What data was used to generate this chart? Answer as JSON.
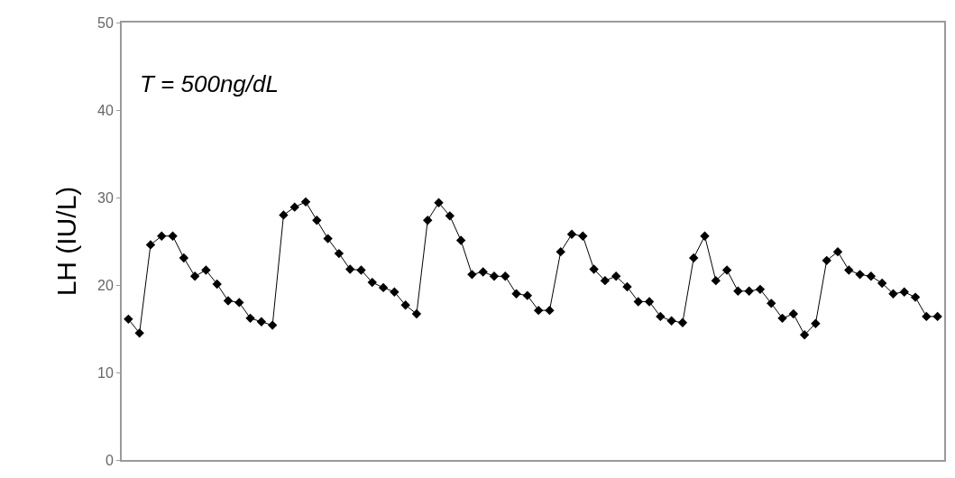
{
  "chart_data": {
    "type": "line",
    "ylabel": "LH (IU/L)",
    "annotations": [
      "T = 500ng/dL"
    ],
    "categories": [
      null,
      null,
      null,
      null,
      null,
      null,
      null,
      null,
      null,
      null,
      null,
      null,
      null,
      null,
      null,
      null,
      null,
      null,
      null,
      null,
      null,
      null,
      null,
      null,
      null,
      null,
      null,
      null,
      null,
      null,
      null,
      null,
      null,
      null,
      null,
      null,
      null,
      null,
      null,
      null,
      null,
      null,
      null,
      null,
      null,
      null,
      null,
      null,
      null,
      null,
      null,
      null,
      null,
      null,
      null,
      null,
      null,
      null,
      null,
      null,
      null,
      null,
      null,
      null,
      null,
      null,
      null,
      null,
      null,
      null,
      null,
      null,
      null,
      null
    ],
    "ylim": [
      0,
      50
    ],
    "yticks": [
      0,
      10,
      20,
      30,
      40,
      50
    ],
    "tick_labels": "y",
    "marker": "diamond",
    "line_style": "solid",
    "series": [
      {
        "color": "#000000",
        "values": [
          16.1,
          14.5,
          24.6,
          25.6,
          25.6,
          23.1,
          21.0,
          21.7,
          20.1,
          18.2,
          18.0,
          16.2,
          15.8,
          15.4,
          28.0,
          28.9,
          29.5,
          27.4,
          25.3,
          23.6,
          21.8,
          21.7,
          20.3,
          19.7,
          19.2,
          17.7,
          16.7,
          27.4,
          29.4,
          27.9,
          25.1,
          21.2,
          21.5,
          21.0,
          21.0,
          19.0,
          18.8,
          17.1,
          17.1,
          23.8,
          25.8,
          25.6,
          21.8,
          20.5,
          21.0,
          19.8,
          18.1,
          18.1,
          16.4,
          15.9,
          15.7,
          23.1,
          25.6,
          20.5,
          21.7,
          19.3,
          19.3,
          19.5,
          17.9,
          16.2,
          16.7,
          14.3,
          15.6,
          22.8,
          23.8,
          21.7,
          21.2,
          21.0,
          20.2,
          19.0,
          19.2,
          18.6,
          16.4,
          16.4
        ]
      }
    ]
  }
}
